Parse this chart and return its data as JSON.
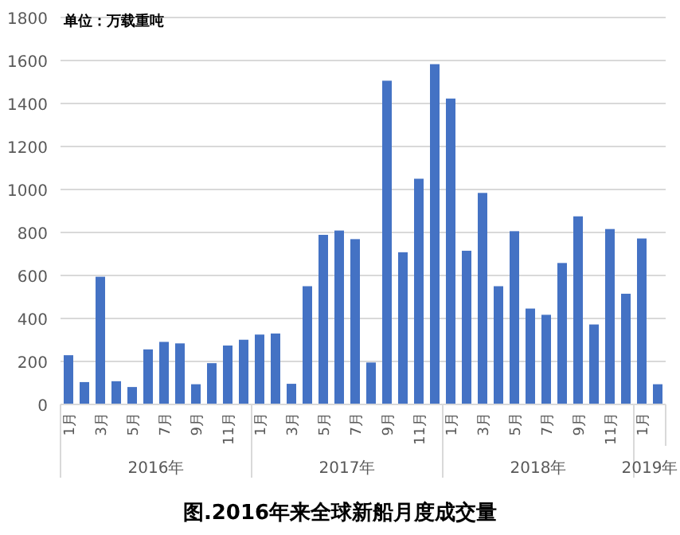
{
  "chart_data": {
    "type": "bar",
    "title": "图.2016年来全球新船月度成交量",
    "ylabel": "单位：万载重吨",
    "categories": [
      "1月",
      null,
      "3月",
      null,
      "5月",
      null,
      "7月",
      null,
      "9月",
      null,
      "11月",
      null,
      "1月",
      null,
      "3月",
      null,
      "5月",
      null,
      "7月",
      null,
      "9月",
      null,
      "11月",
      null,
      "1月",
      null,
      "3月",
      null,
      "5月",
      null,
      "7月",
      null,
      "9月",
      null,
      "11月",
      null,
      "1月",
      null
    ],
    "annotations": [
      "2016年",
      "2017年",
      "2018年",
      "2019年"
    ],
    "values": [
      229,
      104,
      594,
      108,
      81,
      256,
      291,
      284,
      94,
      192,
      274,
      301,
      325,
      330,
      96,
      550,
      789,
      809,
      769,
      195,
      1506,
      708,
      1050,
      1583,
      1423,
      715,
      984,
      550,
      806,
      446,
      417,
      658,
      875,
      372,
      816,
      515,
      772,
      94
    ],
    "color": "#4472c4",
    "ylim": [
      0,
      1800
    ],
    "yticks": [
      0,
      200,
      400,
      600,
      800,
      1000,
      1200,
      1400,
      1600,
      1800
    ],
    "grid": "y"
  }
}
